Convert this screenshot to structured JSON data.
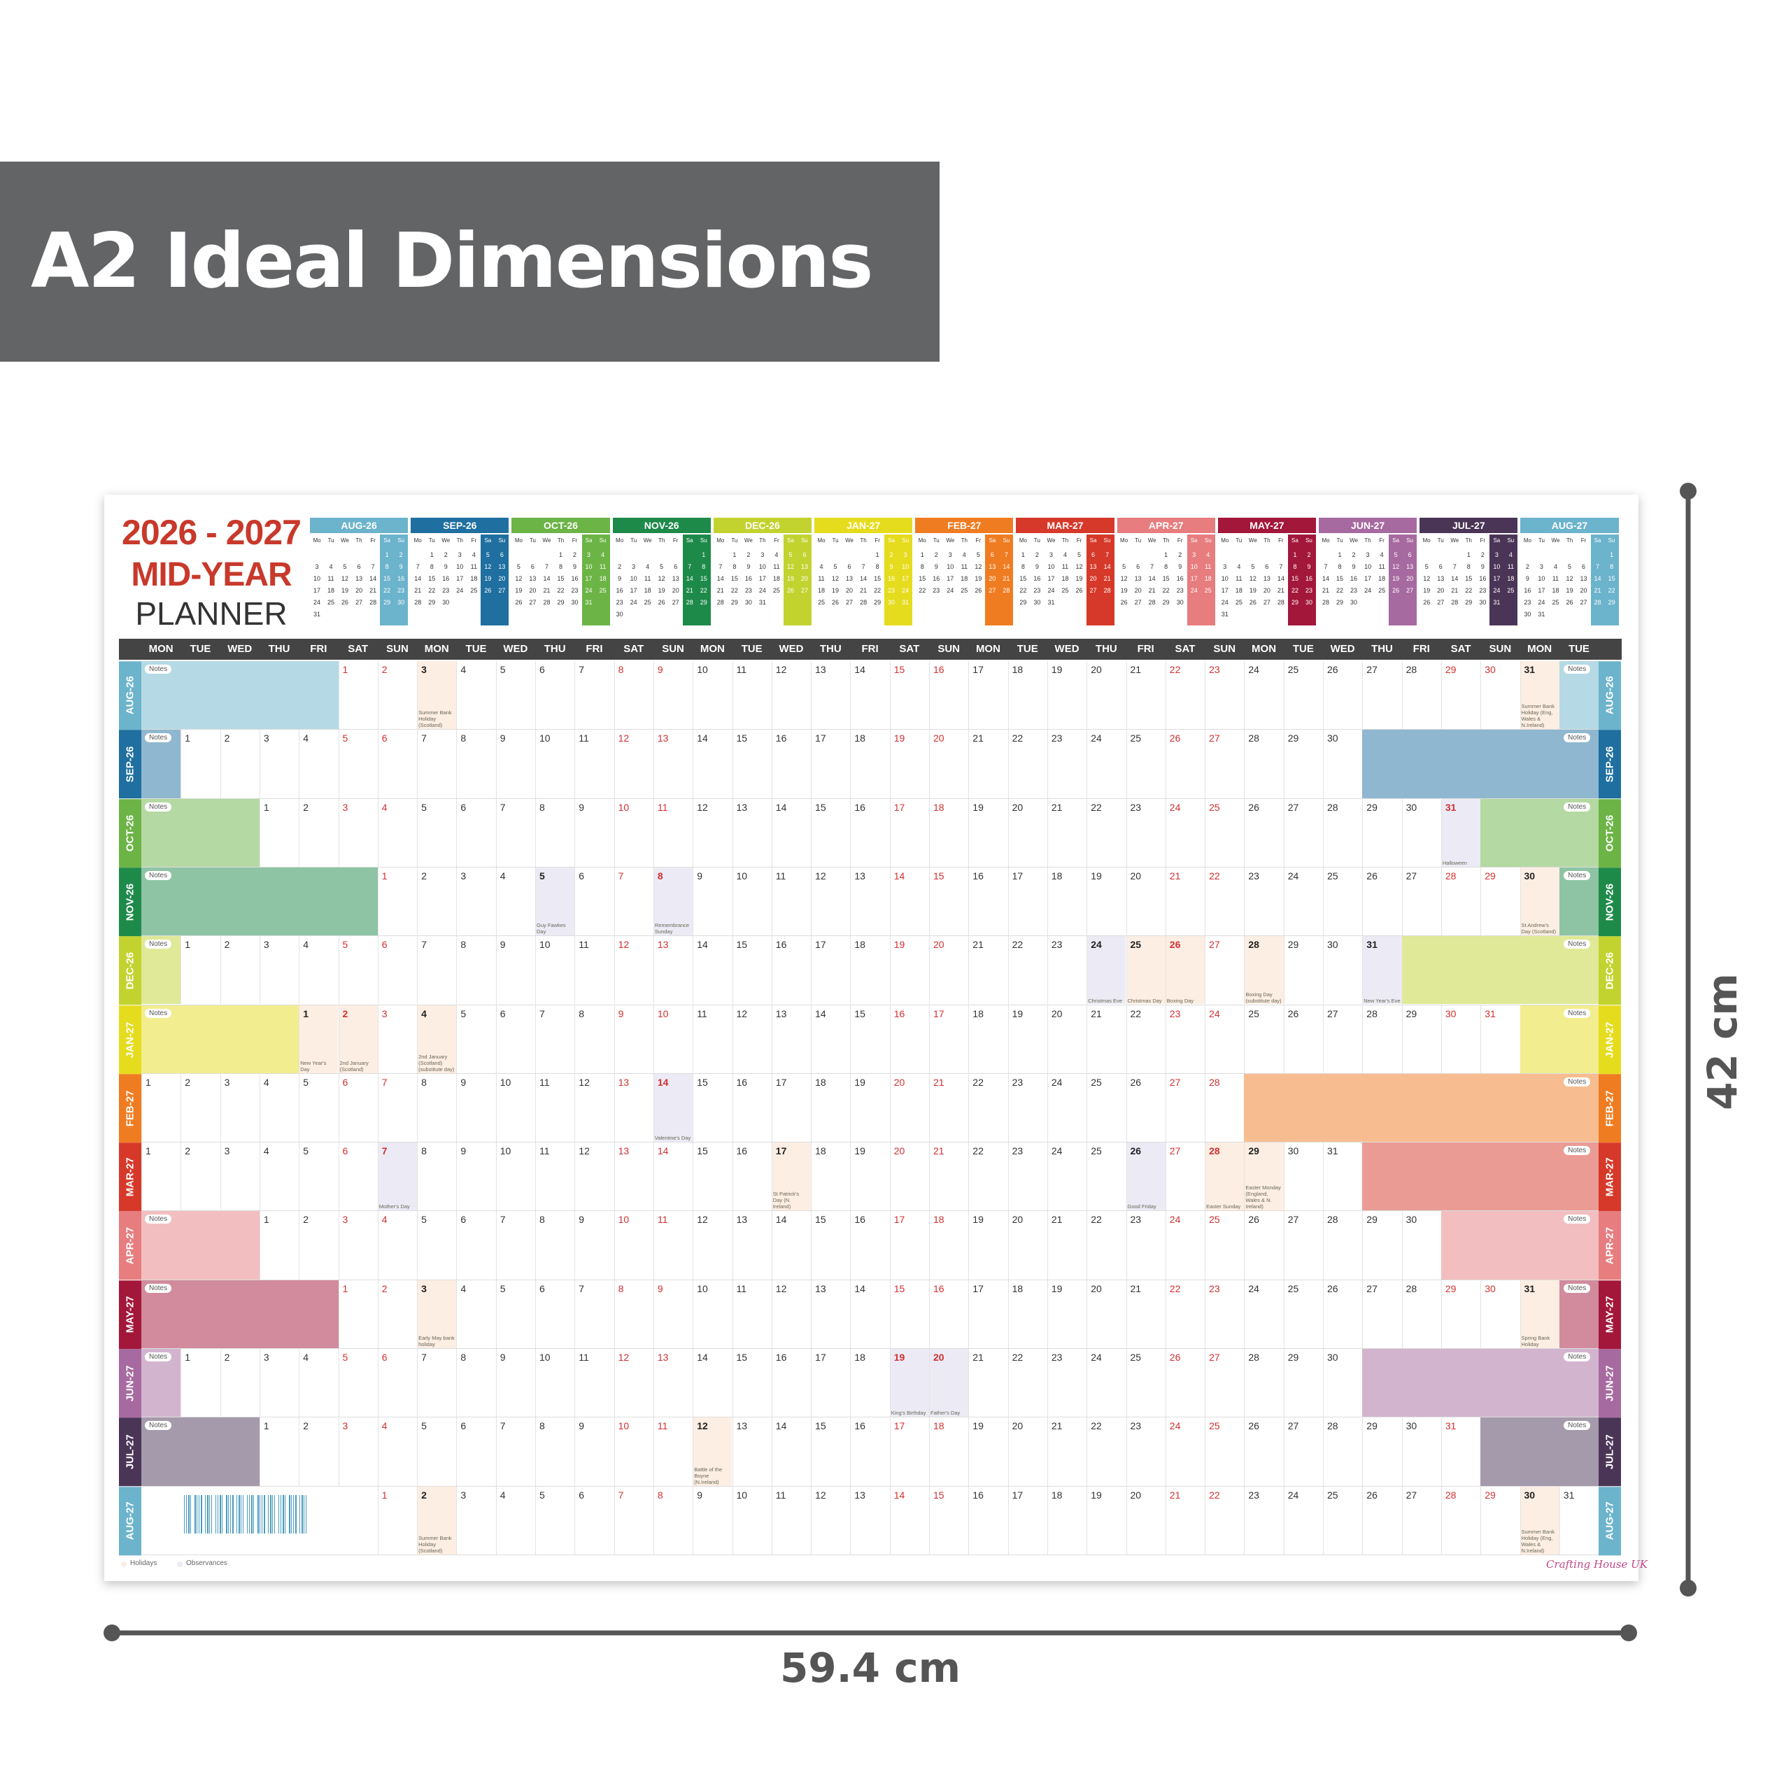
{
  "banner": {
    "title": "A2 Ideal Dimensions"
  },
  "planner": {
    "year_range": "2026 - 2027",
    "subtitle": "MID-YEAR",
    "name": "PLANNER",
    "notes_label": "Notes",
    "mini_weekdays": [
      "Mo",
      "Tu",
      "We",
      "Th",
      "Fr",
      "Sa",
      "Su"
    ],
    "weekday_header": [
      "MON",
      "TUE",
      "WED",
      "THU",
      "FRI",
      "SAT",
      "SUN",
      "MON",
      "TUE",
      "WED",
      "THU",
      "FRI",
      "SAT",
      "SUN",
      "MON",
      "TUE",
      "WED",
      "THU",
      "FRI",
      "SAT",
      "SUN",
      "MON",
      "TUE",
      "WED",
      "THU",
      "FRI",
      "SAT",
      "SUN",
      "MON",
      "TUE",
      "WED",
      "THU",
      "FRI",
      "SAT",
      "SUN",
      "MON",
      "TUE"
    ],
    "months": [
      {
        "label": "AUG-26",
        "color": "#6cb3cc",
        "days": [
          1,
          2,
          3,
          4,
          5,
          6,
          7,
          8,
          9,
          10,
          11,
          12,
          13,
          14,
          15,
          16,
          17,
          18,
          19,
          20,
          21,
          22,
          23,
          24,
          25,
          26,
          27,
          28,
          29,
          30,
          31
        ],
        "events": [
          {
            "day": 3,
            "kind": "holiday",
            "text": "Summer Bank Holiday (Scotland)"
          },
          {
            "day": 31,
            "kind": "holiday",
            "text": "Summer Bank Holiday (Eng, Wales & N.Ireland)"
          }
        ]
      },
      {
        "label": "SEP-26",
        "color": "#1f6fa0",
        "days": [
          1,
          2,
          3,
          4,
          5,
          6,
          7,
          8,
          9,
          10,
          11,
          12,
          13,
          14,
          15,
          16,
          17,
          18,
          19,
          20,
          21,
          22,
          23,
          24,
          25,
          26,
          27,
          28,
          29,
          30
        ],
        "events": []
      },
      {
        "label": "OCT-26",
        "color": "#6cb446",
        "days": [
          1,
          2,
          3,
          4,
          5,
          6,
          7,
          8,
          9,
          10,
          11,
          12,
          13,
          14,
          15,
          16,
          17,
          18,
          19,
          20,
          21,
          22,
          23,
          24,
          25,
          26,
          27,
          28,
          29,
          30,
          31
        ],
        "events": [
          {
            "day": 31,
            "kind": "observance",
            "text": "Halloween"
          }
        ]
      },
      {
        "label": "NOV-26",
        "color": "#1e8a4a",
        "days": [
          1,
          2,
          3,
          4,
          5,
          6,
          7,
          8,
          9,
          10,
          11,
          12,
          13,
          14,
          15,
          16,
          17,
          18,
          19,
          20,
          21,
          22,
          23,
          24,
          25,
          26,
          27,
          28,
          29,
          30
        ],
        "events": [
          {
            "day": 5,
            "kind": "observance",
            "text": "Guy Fawkes Day"
          },
          {
            "day": 8,
            "kind": "observance",
            "text": "Remembrance Sunday"
          },
          {
            "day": 30,
            "kind": "holiday",
            "text": "St Andrew's Day (Scotland)"
          }
        ]
      },
      {
        "label": "DEC-26",
        "color": "#c2d330",
        "days": [
          1,
          2,
          3,
          4,
          5,
          6,
          7,
          8,
          9,
          10,
          11,
          12,
          13,
          14,
          15,
          16,
          17,
          18,
          19,
          20,
          21,
          22,
          23,
          24,
          25,
          26,
          27,
          28,
          29,
          30,
          31
        ],
        "events": [
          {
            "day": 24,
            "kind": "observance",
            "text": "Christmas Eve"
          },
          {
            "day": 25,
            "kind": "holiday",
            "text": "Christmas Day"
          },
          {
            "day": 26,
            "kind": "holiday",
            "text": "Boxing Day"
          },
          {
            "day": 28,
            "kind": "holiday",
            "text": "Boxing Day (substitute day)"
          },
          {
            "day": 31,
            "kind": "observance",
            "text": "New Year's Eve"
          }
        ]
      },
      {
        "label": "JAN-27",
        "color": "#e6dc1e",
        "days": [
          1,
          2,
          3,
          4,
          5,
          6,
          7,
          8,
          9,
          10,
          11,
          12,
          13,
          14,
          15,
          16,
          17,
          18,
          19,
          20,
          21,
          22,
          23,
          24,
          25,
          26,
          27,
          28,
          29,
          30,
          31
        ],
        "events": [
          {
            "day": 1,
            "kind": "holiday",
            "text": "New Year's Day"
          },
          {
            "day": 2,
            "kind": "holiday",
            "text": "2nd January (Scotland)"
          },
          {
            "day": 4,
            "kind": "holiday",
            "text": "2nd January (Scotland) (substitute day)"
          }
        ]
      },
      {
        "label": "FEB-27",
        "color": "#f07c22",
        "days": [
          1,
          2,
          3,
          4,
          5,
          6,
          7,
          8,
          9,
          10,
          11,
          12,
          13,
          14,
          15,
          16,
          17,
          18,
          19,
          20,
          21,
          22,
          23,
          24,
          25,
          26,
          27,
          28
        ],
        "events": [
          {
            "day": 14,
            "kind": "observance",
            "text": "Valentine's Day"
          }
        ]
      },
      {
        "label": "MAR-27",
        "color": "#d6392a",
        "days": [
          1,
          2,
          3,
          4,
          5,
          6,
          7,
          8,
          9,
          10,
          11,
          12,
          13,
          14,
          15,
          16,
          17,
          18,
          19,
          20,
          21,
          22,
          23,
          24,
          25,
          26,
          27,
          28,
          29,
          30,
          31
        ],
        "events": [
          {
            "day": 7,
            "kind": "observance",
            "text": "Mother's Day"
          },
          {
            "day": 17,
            "kind": "holiday",
            "text": "St Patrick's Day (N. Ireland)"
          },
          {
            "day": 26,
            "kind": "observance",
            "text": "Good Friday"
          },
          {
            "day": 28,
            "kind": "holiday",
            "text": "Easter Sunday"
          },
          {
            "day": 29,
            "kind": "holiday",
            "text": "Easter Monday (England, Wales & N. Ireland)"
          }
        ]
      },
      {
        "label": "APR-27",
        "color": "#e77d7f",
        "days": [
          1,
          2,
          3,
          4,
          5,
          6,
          7,
          8,
          9,
          10,
          11,
          12,
          13,
          14,
          15,
          16,
          17,
          18,
          19,
          20,
          21,
          22,
          23,
          24,
          25,
          26,
          27,
          28,
          29,
          30
        ],
        "events": []
      },
      {
        "label": "MAY-27",
        "color": "#a3173a",
        "days": [
          1,
          2,
          3,
          4,
          5,
          6,
          7,
          8,
          9,
          10,
          11,
          12,
          13,
          14,
          15,
          16,
          17,
          18,
          19,
          20,
          21,
          22,
          23,
          24,
          25,
          26,
          27,
          28,
          29,
          30,
          31
        ],
        "events": [
          {
            "day": 3,
            "kind": "holiday",
            "text": "Early May bank holiday"
          },
          {
            "day": 31,
            "kind": "holiday",
            "text": "Spring Bank Holiday"
          }
        ]
      },
      {
        "label": "JUN-27",
        "color": "#a76aa0",
        "days": [
          1,
          2,
          3,
          4,
          5,
          6,
          7,
          8,
          9,
          10,
          11,
          12,
          13,
          14,
          15,
          16,
          17,
          18,
          19,
          20,
          21,
          22,
          23,
          24,
          25,
          26,
          27,
          28,
          29,
          30
        ],
        "events": [
          {
            "day": 19,
            "kind": "observance",
            "text": "King's Birthday"
          },
          {
            "day": 20,
            "kind": "observance",
            "text": "Father's Day"
          }
        ]
      },
      {
        "label": "JUL-27",
        "color": "#4b3557",
        "days": [
          1,
          2,
          3,
          4,
          5,
          6,
          7,
          8,
          9,
          10,
          11,
          12,
          13,
          14,
          15,
          16,
          17,
          18,
          19,
          20,
          21,
          22,
          23,
          24,
          25,
          26,
          27,
          28,
          29,
          30,
          31
        ],
        "events": [
          {
            "day": 12,
            "kind": "holiday",
            "text": "Battle of the Boyne (N.Ireland)"
          }
        ]
      },
      {
        "label": "AUG-27",
        "color": "#6cb3cc",
        "days": [
          1,
          2,
          3,
          4,
          5,
          6,
          7,
          8,
          9,
          10,
          11,
          12,
          13,
          14,
          15,
          16,
          17,
          18,
          19,
          20,
          21,
          22,
          23,
          24,
          25,
          26,
          27,
          28,
          29,
          30,
          31
        ],
        "events": [
          {
            "day": 2,
            "kind": "holiday",
            "text": "Summer Bank Holiday (Scotland)"
          },
          {
            "day": 30,
            "kind": "holiday",
            "text": "Summer Bank Holiday (Eng, Wales & N.Ireland)"
          }
        ]
      }
    ],
    "legend": [
      "Holidays",
      "Observances"
    ],
    "brand": "Crafting House UK"
  },
  "dimensions": {
    "height": "42 cm",
    "width": "59.4 cm"
  }
}
